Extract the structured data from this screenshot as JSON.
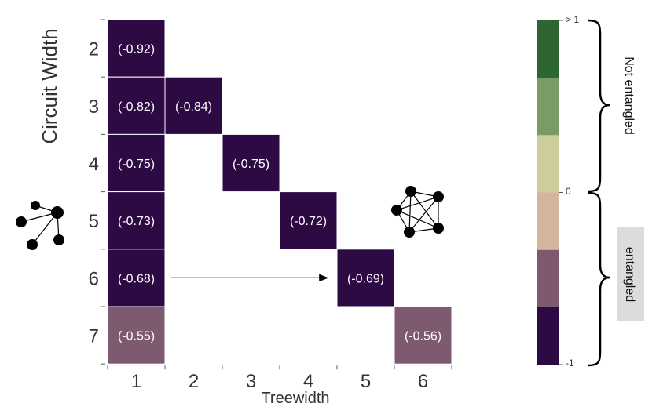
{
  "chart_data": {
    "type": "heatmap",
    "xlabel": "Treewidth",
    "ylabel": "Circuit Width",
    "x_categories": [
      "1",
      "2",
      "3",
      "4",
      "5",
      "6"
    ],
    "y_categories": [
      "2",
      "3",
      "4",
      "5",
      "6",
      "7"
    ],
    "cells": [
      {
        "x": "1",
        "y": "2",
        "value": -0.92,
        "label": "(-0.92)"
      },
      {
        "x": "1",
        "y": "3",
        "value": -0.82,
        "label": "(-0.82)"
      },
      {
        "x": "2",
        "y": "3",
        "value": -0.84,
        "label": "(-0.84)"
      },
      {
        "x": "1",
        "y": "4",
        "value": -0.75,
        "label": "(-0.75)"
      },
      {
        "x": "3",
        "y": "4",
        "value": -0.75,
        "label": "(-0.75)"
      },
      {
        "x": "1",
        "y": "5",
        "value": -0.73,
        "label": "(-0.73)"
      },
      {
        "x": "4",
        "y": "5",
        "value": -0.72,
        "label": "(-0.72)"
      },
      {
        "x": "1",
        "y": "6",
        "value": -0.68,
        "label": "(-0.68)"
      },
      {
        "x": "5",
        "y": "6",
        "value": -0.69,
        "label": "(-0.69)"
      },
      {
        "x": "1",
        "y": "7",
        "value": -0.55,
        "label": "(-0.55)"
      },
      {
        "x": "6",
        "y": "7",
        "value": -0.56,
        "label": "(-0.56)"
      }
    ],
    "colorbar": {
      "min": -1,
      "max": 1,
      "labels": [
        "> 1",
        "0",
        "-1"
      ],
      "bins": [
        {
          "from": -1.0,
          "to": -0.6667,
          "color": "#2e0a45"
        },
        {
          "from": -0.6667,
          "to": -0.3333,
          "color": "#7e5a70"
        },
        {
          "from": -0.3333,
          "to": 0.0,
          "color": "#d4b49c"
        },
        {
          "from": 0.0,
          "to": 0.3333,
          "color": "#cfcc9c"
        },
        {
          "from": 0.3333,
          "to": 0.6667,
          "color": "#7a9a66"
        },
        {
          "from": 0.6667,
          "to": 1.0,
          "color": "#2e6633"
        }
      ]
    },
    "annotations": {
      "upper_brace_label": "Not entangled",
      "lower_brace_label": "entangled",
      "arrow": {
        "from_x": "1",
        "to_x": "5",
        "y": "6"
      }
    }
  },
  "icons": {
    "left": "star-graph-icon",
    "right": "complete-graph-icon"
  }
}
